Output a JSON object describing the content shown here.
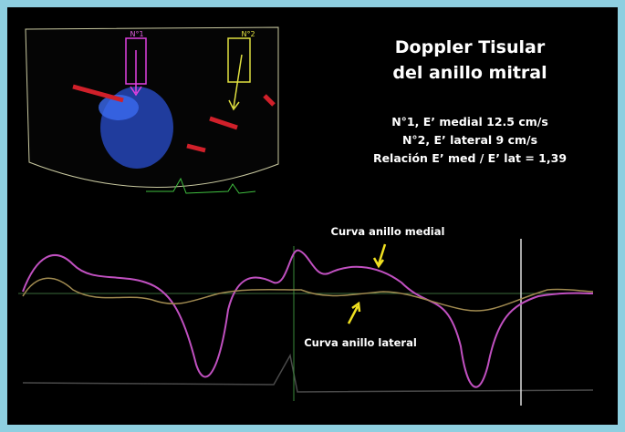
{
  "slide": {
    "title_lines": [
      "Doppler Tisular",
      "del anillo mitral"
    ],
    "measurements": [
      "N°1, E’ medial 12.5 cm/s",
      "N°2, E’ lateral 9 cm/s",
      "Relación E’ med / E’ lat = 1,39"
    ],
    "sector_tags": [
      "N°1",
      "N°2"
    ],
    "curve_labels": [
      "Curva anillo medial",
      "Curva anillo lateral"
    ]
  }
}
